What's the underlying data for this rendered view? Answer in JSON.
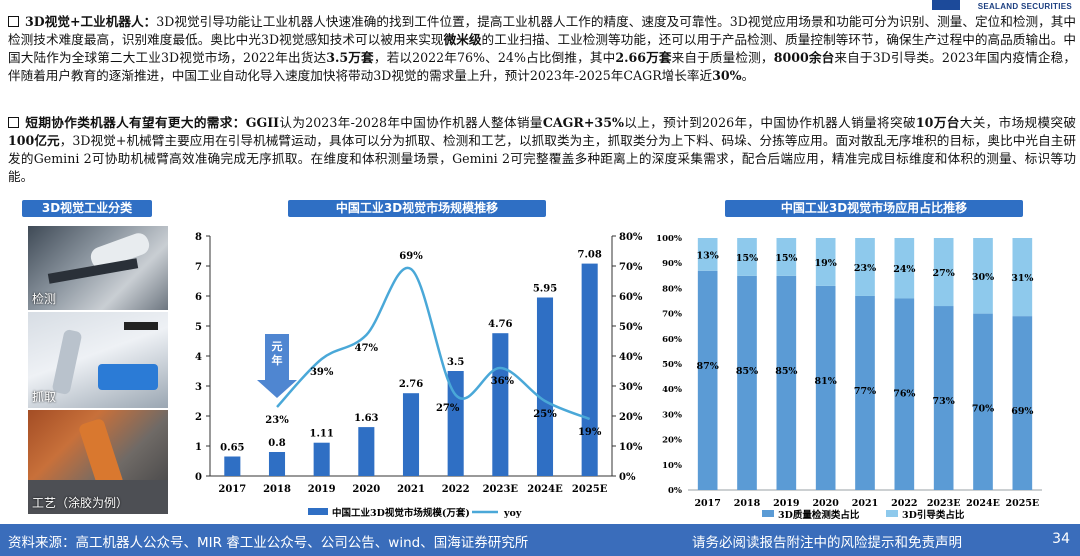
{
  "header": {
    "logo_text": "SEALAND SECURITIES"
  },
  "para1": {
    "bold_lead": "3D视觉+工业机器人：",
    "t1": "3D视觉引导功能让工业机器人快速准确的找到工件位置，提高工业机器人工作的精度、速度及可靠性。3D视觉应用场景和功能可分为识别、测量、定位和检测，其中检测技术难度最高，识别难度最低。奥比中光3D视觉感知技术可以被用来实现",
    "b1": "微米级",
    "t2": "的工业扫描、工业检测等功能，还可以用于产品检测、质量控制等环节，确保生产过程中的高品质输出。中国大陆作为全球第二大工业3D视觉市场，2022年出货达",
    "b2": "3.5万套",
    "t3": "，若以2022年76%、24%占比倒推，其中",
    "b3": "2.66万套",
    "t4": "来自于质量检测，",
    "b4": "8000余台",
    "t5": "来自于3D引导类。2023年国内疫情企稳，伴随着用户教育的逐渐推进，中国工业自动化导入速度加快将带动3D视觉的需求量上升，预计2023年-2025年CAGR增长率近",
    "b5": "30%",
    "t6": "。"
  },
  "para2": {
    "bold_lead": "短期协作类机器人有望有更大的需求：",
    "b1": "GGII",
    "t1": "认为2023年-2028年中国协作机器人整体销量",
    "b2": "CAGR+35%",
    "t2": "以上，预计到2026年，中国协作机器人销量将突破",
    "b3": "10万台",
    "t3": "大关，市场规模突破",
    "b4": "100亿元",
    "t4": "，3D视觉+机械臂主要应用在引导机械臂运动，具体可以分为抓取、检测和工艺，以抓取类为主，抓取类分为上下料、码垛、分拣等应用。面对散乱无序堆积的目标，奥比中光自主研发的Gemini 2可协助机械臂高效准确完成无序抓取。在维度和体积测量场景，Gemini 2可完整覆盖多种距离上的深度采集需求，配合后端应用，精准完成目标维度和体积的测量、标识等功能。"
  },
  "panels": {
    "left_title": "3D视觉工业分类",
    "mid_title": "中国工业3D视觉市场规模推移",
    "right_title": "中国工业3D视觉市场应用占比推移",
    "photo_labels": [
      "检测",
      "抓取",
      "工艺（涂胶为例）"
    ]
  },
  "colors": {
    "bar_blue": "#2f6fc4",
    "line_blue": "#4aa8d8",
    "stack_dark": "#5b9bd5",
    "stack_light": "#8ec9ec",
    "title_blue": "#2f6fc4",
    "footer_blue": "#3a6dbb"
  },
  "chart_data": [
    {
      "type": "bar",
      "title": "中国工业3D视觉市场规模推移",
      "categories": [
        "2017",
        "2018",
        "2019",
        "2020",
        "2021",
        "2022",
        "2023E",
        "2024E",
        "2025E"
      ],
      "series": [
        {
          "name": "中国工业3D视觉市场规模(万套)",
          "type": "bar",
          "axis": "left",
          "values": [
            0.65,
            0.8,
            1.11,
            1.63,
            2.76,
            3.5,
            4.76,
            5.95,
            7.08
          ]
        },
        {
          "name": "yoy",
          "type": "line",
          "axis": "right",
          "values": [
            null,
            23,
            39,
            47,
            69,
            27,
            36,
            25,
            19
          ]
        }
      ],
      "value_labels": [
        "0.65",
        "0.8",
        "1.11",
        "1.63",
        "2.76",
        "3.5",
        "4.76",
        "5.95",
        "7.08"
      ],
      "yoy_labels": [
        "",
        "23%",
        "39%",
        "47%",
        "69%",
        "27%",
        "36%",
        "25%",
        "19%"
      ],
      "ylim": [
        0,
        8
      ],
      "yticks": [
        "0",
        "1",
        "2",
        "3",
        "4",
        "5",
        "6",
        "7",
        "8"
      ],
      "y2lim": [
        0,
        80
      ],
      "y2ticks": [
        "0%",
        "10%",
        "20%",
        "30%",
        "40%",
        "50%",
        "60%",
        "70%",
        "80%"
      ],
      "annotation": "元年",
      "legend_position": "bottom"
    },
    {
      "type": "bar",
      "stacked": true,
      "title": "中国工业3D视觉市场应用占比推移",
      "categories": [
        "2017",
        "2018",
        "2019",
        "2020",
        "2021",
        "2022",
        "2023E",
        "2024E",
        "2025E"
      ],
      "series": [
        {
          "name": "3D质量检测类占比",
          "values": [
            87,
            85,
            85,
            81,
            77,
            76,
            73,
            70,
            69
          ]
        },
        {
          "name": "3D引导类占比",
          "values": [
            13,
            15,
            15,
            19,
            23,
            24,
            27,
            30,
            31
          ]
        }
      ],
      "ylim": [
        0,
        100
      ],
      "yticks": [
        "0%",
        "10%",
        "20%",
        "30%",
        "40%",
        "50%",
        "60%",
        "70%",
        "80%",
        "90%",
        "100%"
      ],
      "legend_position": "bottom"
    }
  ],
  "footer": {
    "source": "资料来源：高工机器人公众号、MIR 睿工业公众号、公司公告、wind、国海证券研究所",
    "note": "请务必阅读报告附注中的风险提示和免责声明",
    "page": "34"
  }
}
